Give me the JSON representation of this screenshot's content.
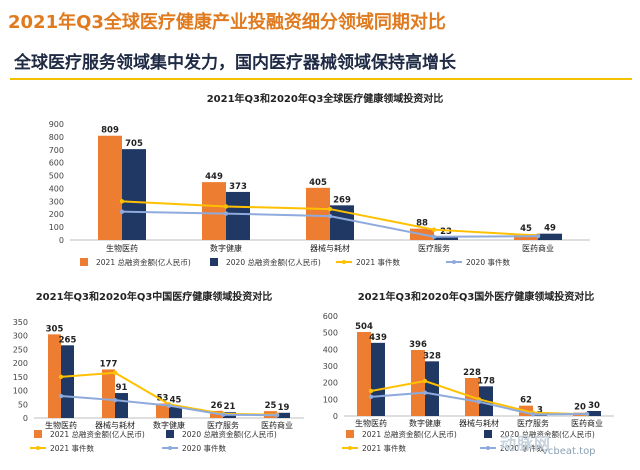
{
  "header": {
    "title": "2021年Q3全球医疗健康产业投融资细分领域同期对比",
    "subtitle": "全球医疗服务领域集中发力，国内医疗器械领域保持高增长"
  },
  "watermark": {
    "logo_text": "动脉网",
    "url": "vcbeat.top"
  },
  "colors": {
    "bar2021": "#ed7d31",
    "bar2020": "#1f3864",
    "line2021": "#ffc000",
    "line2020": "#8faadc"
  },
  "chart_data": [
    {
      "type": "bar",
      "title": "2021年Q3和2020年Q3全球医疗健康领域投资对比",
      "categories": [
        "生物医药",
        "数字健康",
        "器械与耗材",
        "医疗服务",
        "医药商业"
      ],
      "ylim": [
        0,
        900
      ],
      "yticks": [
        0,
        100,
        200,
        300,
        400,
        500,
        600,
        700,
        800,
        900
      ],
      "series": [
        {
          "name": "2021 总融资金额(亿人民币)",
          "kind": "bar",
          "values": [
            809,
            449,
            405,
            88,
            45
          ]
        },
        {
          "name": "2020 总融资金额(亿人民币)",
          "kind": "bar",
          "values": [
            705,
            373,
            269,
            23,
            49
          ]
        },
        {
          "name": "2021 事件数",
          "kind": "line",
          "values": [
            300,
            260,
            240,
            80,
            35
          ]
        },
        {
          "name": "2020 事件数",
          "kind": "line",
          "values": [
            220,
            205,
            185,
            25,
            30
          ]
        }
      ]
    },
    {
      "type": "bar",
      "title": "2021年Q3和2020年Q3中国医疗健康领域投资对比",
      "categories": [
        "生物医药",
        "器械与耗材",
        "数字健康",
        "医疗服务",
        "医药商业"
      ],
      "ylim": [
        0,
        350
      ],
      "yticks": [
        0,
        50,
        100,
        150,
        200,
        250,
        300,
        350
      ],
      "series": [
        {
          "name": "2021 总融资金额(亿人民币)",
          "kind": "bar",
          "values": [
            305,
            177,
            53,
            26,
            25
          ]
        },
        {
          "name": "2020 总融资金额(亿人民币)",
          "kind": "bar",
          "values": [
            265,
            91,
            45,
            21,
            19
          ]
        },
        {
          "name": "2021 事件数",
          "kind": "line",
          "values": [
            150,
            165,
            50,
            15,
            12
          ]
        },
        {
          "name": "2020 事件数",
          "kind": "line",
          "values": [
            80,
            65,
            45,
            12,
            10
          ]
        }
      ]
    },
    {
      "type": "bar",
      "title": "2021年Q3和2020年Q3国外医疗健康领域投资对比",
      "categories": [
        "生物医药",
        "数字健康",
        "器械与耗材",
        "医疗服务",
        "医药商业"
      ],
      "ylim": [
        0,
        600
      ],
      "yticks": [
        0,
        100,
        200,
        300,
        400,
        500,
        600
      ],
      "series": [
        {
          "name": "2021 总融资金额(亿人民币)",
          "kind": "bar",
          "values": [
            504,
            396,
            228,
            62,
            20
          ]
        },
        {
          "name": "2020 总融资金额(亿人民币)",
          "kind": "bar",
          "values": [
            439,
            328,
            178,
            3,
            30
          ]
        },
        {
          "name": "2021 事件数",
          "kind": "line",
          "values": [
            150,
            210,
            100,
            20,
            10
          ]
        },
        {
          "name": "2020 事件数",
          "kind": "line",
          "values": [
            115,
            140,
            85,
            10,
            12
          ]
        }
      ]
    }
  ]
}
